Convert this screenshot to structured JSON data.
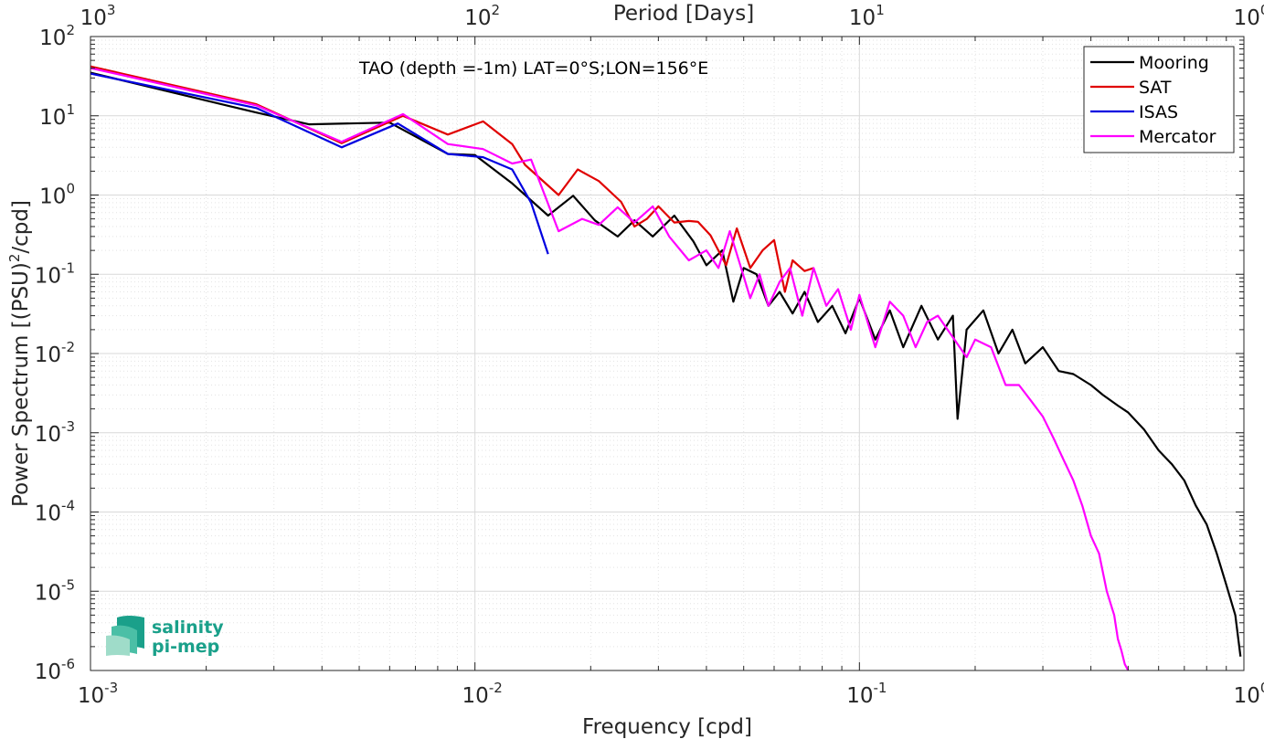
{
  "chart_data": {
    "type": "line",
    "title": "TAO (depth =-1m) LAT=0°S;LON=156°E",
    "xlabel": "Frequency [cpd]",
    "ylabel": "Power Spectrum [(PSU)",
    "ylabel_sup": "2",
    "ylabel_tail": "/cpd]",
    "top_xlabel": "Period [Days]",
    "x_scale": "log",
    "y_scale": "log",
    "xlim": [
      0.001,
      1
    ],
    "ylim": [
      1e-06,
      100
    ],
    "grid": "on (major and minor)",
    "legend_position": "top-right",
    "x_ticks": [
      {
        "base": "10",
        "exp": "-3",
        "value": 0.001
      },
      {
        "base": "10",
        "exp": "-2",
        "value": 0.01
      },
      {
        "base": "10",
        "exp": "-1",
        "value": 0.1
      },
      {
        "base": "10",
        "exp": "0",
        "value": 1
      }
    ],
    "top_ticks": [
      {
        "base": "10",
        "exp": "3",
        "value": 0.001
      },
      {
        "base": "10",
        "exp": "2",
        "value": 0.01
      },
      {
        "base": "10",
        "exp": "1",
        "value": 0.1
      },
      {
        "base": "10",
        "exp": "0",
        "value": 1
      }
    ],
    "y_ticks": [
      {
        "base": "10",
        "exp": "2",
        "value": 100
      },
      {
        "base": "10",
        "exp": "1",
        "value": 10
      },
      {
        "base": "10",
        "exp": "0",
        "value": 1
      },
      {
        "base": "10",
        "exp": "-1",
        "value": 0.1
      },
      {
        "base": "10",
        "exp": "-2",
        "value": 0.01
      },
      {
        "base": "10",
        "exp": "-3",
        "value": 0.001
      },
      {
        "base": "10",
        "exp": "-4",
        "value": 0.0001
      },
      {
        "base": "10",
        "exp": "-5",
        "value": 1e-05
      },
      {
        "base": "10",
        "exp": "-6",
        "value": 1e-06
      }
    ],
    "series": [
      {
        "name": "Mooring",
        "color": "#000000",
        "x": [
          0.001,
          0.0027,
          0.0037,
          0.006,
          0.0085,
          0.01,
          0.0125,
          0.0155,
          0.018,
          0.0205,
          0.0235,
          0.026,
          0.029,
          0.033,
          0.037,
          0.04,
          0.044,
          0.047,
          0.05,
          0.054,
          0.058,
          0.062,
          0.067,
          0.072,
          0.078,
          0.085,
          0.092,
          0.1,
          0.11,
          0.12,
          0.13,
          0.145,
          0.16,
          0.175,
          0.18,
          0.19,
          0.21,
          0.23,
          0.25,
          0.27,
          0.3,
          0.33,
          0.36,
          0.4,
          0.43,
          0.47,
          0.5,
          0.55,
          0.6,
          0.65,
          0.7,
          0.75,
          0.8,
          0.85,
          0.9,
          0.95,
          0.98
        ],
        "y": [
          35,
          11,
          7.8,
          8.2,
          3.3,
          3.2,
          1.4,
          0.55,
          0.98,
          0.48,
          0.3,
          0.48,
          0.3,
          0.55,
          0.26,
          0.13,
          0.2,
          0.045,
          0.12,
          0.1,
          0.04,
          0.06,
          0.032,
          0.06,
          0.025,
          0.04,
          0.018,
          0.05,
          0.015,
          0.035,
          0.012,
          0.04,
          0.015,
          0.03,
          0.0015,
          0.02,
          0.035,
          0.01,
          0.02,
          0.0075,
          0.012,
          0.006,
          0.0055,
          0.004,
          0.003,
          0.0022,
          0.0018,
          0.0011,
          0.0006,
          0.0004,
          0.00025,
          0.00012,
          7e-05,
          3e-05,
          1.2e-05,
          5e-06,
          1.5e-06
        ]
      },
      {
        "name": "SAT",
        "color": "#e00000",
        "x": [
          0.001,
          0.0027,
          0.0045,
          0.0065,
          0.0085,
          0.0105,
          0.0125,
          0.0135,
          0.0165,
          0.0185,
          0.021,
          0.024,
          0.026,
          0.028,
          0.03,
          0.033,
          0.036,
          0.038,
          0.041,
          0.045,
          0.048,
          0.052,
          0.056,
          0.06,
          0.064,
          0.067,
          0.072,
          0.076
        ],
        "y": [
          42,
          14,
          4.5,
          10,
          5.8,
          8.5,
          4.4,
          2.4,
          1.0,
          2.1,
          1.5,
          0.82,
          0.4,
          0.5,
          0.72,
          0.45,
          0.47,
          0.46,
          0.31,
          0.13,
          0.38,
          0.12,
          0.2,
          0.27,
          0.06,
          0.15,
          0.11,
          0.12
        ]
      },
      {
        "name": "ISAS",
        "color": "#0000e0",
        "x": [
          0.001,
          0.0027,
          0.0045,
          0.0063,
          0.0085,
          0.0105,
          0.0125,
          0.014,
          0.0155
        ],
        "y": [
          34,
          12.5,
          4.0,
          8.0,
          3.3,
          3.0,
          2.1,
          0.8,
          0.18
        ]
      },
      {
        "name": "Mercator",
        "color": "#ff00ff",
        "x": [
          0.001,
          0.0027,
          0.0045,
          0.0065,
          0.0085,
          0.0105,
          0.0125,
          0.014,
          0.0165,
          0.019,
          0.021,
          0.0235,
          0.026,
          0.029,
          0.032,
          0.036,
          0.04,
          0.043,
          0.046,
          0.049,
          0.052,
          0.055,
          0.058,
          0.062,
          0.066,
          0.071,
          0.076,
          0.082,
          0.088,
          0.095,
          0.1,
          0.11,
          0.12,
          0.13,
          0.14,
          0.15,
          0.16,
          0.175,
          0.19,
          0.2,
          0.22,
          0.24,
          0.26,
          0.28,
          0.3,
          0.32,
          0.34,
          0.36,
          0.38,
          0.4,
          0.42,
          0.44,
          0.46,
          0.47,
          0.48,
          0.49,
          0.5
        ],
        "y": [
          40,
          13.5,
          4.7,
          10.5,
          4.4,
          3.8,
          2.5,
          2.8,
          0.35,
          0.5,
          0.42,
          0.7,
          0.45,
          0.72,
          0.3,
          0.15,
          0.2,
          0.12,
          0.35,
          0.13,
          0.05,
          0.1,
          0.04,
          0.08,
          0.12,
          0.03,
          0.12,
          0.04,
          0.065,
          0.02,
          0.055,
          0.012,
          0.045,
          0.03,
          0.012,
          0.025,
          0.03,
          0.016,
          0.009,
          0.015,
          0.012,
          0.004,
          0.004,
          0.0025,
          0.0016,
          0.00085,
          0.00045,
          0.00025,
          0.00012,
          5e-05,
          3e-05,
          1e-05,
          5e-06,
          2.5e-06,
          1.8e-06,
          1.2e-06,
          1e-06
        ]
      }
    ]
  },
  "logo": {
    "line1": "salinity",
    "line2": "pi-mep"
  }
}
